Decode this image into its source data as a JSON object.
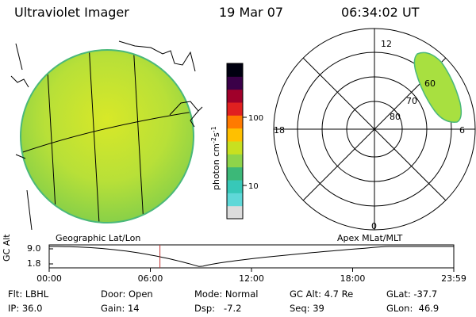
{
  "header": {
    "title": "Ultraviolet Imager",
    "date": "19 Mar 07",
    "time": "06:34:02 UT"
  },
  "colorbar": {
    "unit_label": "photon cm-2s-1",
    "ticks": [
      "100",
      "10"
    ],
    "colors": [
      "#dcdcdc",
      "#5fd8d8",
      "#37c8b8",
      "#3cb878",
      "#8ed44a",
      "#c8e020",
      "#ffc000",
      "#ff7a00",
      "#e02020",
      "#a0002a",
      "#3a0048",
      "#000010"
    ]
  },
  "polar_plot": {
    "latitude_labels": [
      "80",
      "70",
      "60"
    ],
    "mlt_labels": {
      "top": "12",
      "left": "18",
      "right": "6",
      "bottom": "0"
    }
  },
  "geo_image": {
    "projection_label": "Geographic Lat/Lon"
  },
  "altitude_plot": {
    "y_axis_label": "GC Alt",
    "y_ticks": [
      "9.0",
      "1.8"
    ],
    "x_ticks": [
      "00:00",
      "06:00",
      "12:00",
      "18:00",
      "23:59"
    ],
    "right_label": "Apex MLat/MLT",
    "current_time_hours": 6.57,
    "marker_color": "#c03030"
  },
  "info": {
    "row1": [
      {
        "name": "filter",
        "text": "Flt: LBHL"
      },
      {
        "name": "door",
        "text": "Door: Open"
      },
      {
        "name": "mode",
        "text": "Mode: Normal"
      },
      {
        "name": "gc-alt",
        "text": "GC Alt: 4.7 Re"
      },
      {
        "name": "glat",
        "text": "GLat: -37.7"
      }
    ],
    "row2": [
      {
        "name": "ip",
        "text": "IP: 36.0"
      },
      {
        "name": "gain",
        "text": "Gain: 14"
      },
      {
        "name": "dsp",
        "text": "Dsp:   -7.2"
      },
      {
        "name": "seq",
        "text": "Seq: 39"
      },
      {
        "name": "glon",
        "text": "GLon:  46.9"
      }
    ]
  }
}
